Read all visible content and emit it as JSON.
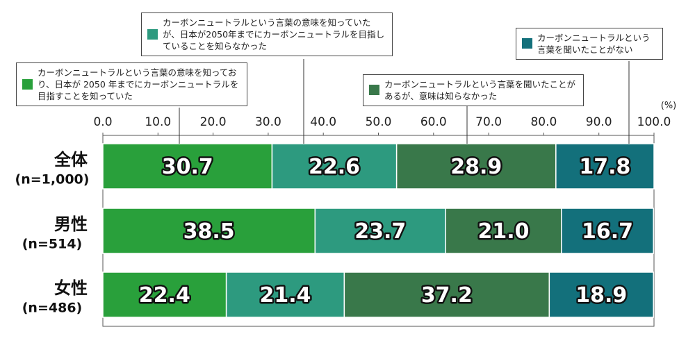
{
  "chart_data": {
    "type": "bar",
    "orientation": "horizontal",
    "stacked": true,
    "unit": "(%)",
    "categories": [
      "全体",
      "男性",
      "女性"
    ],
    "category_sublabels": [
      "(n=1,000)",
      "(n=514)",
      "(n=486)"
    ],
    "series": [
      {
        "name": "カーボンニュートラルという言葉の意味を知っており、日本が 2050 年までにカーボンニュートラルを目指すことを知っていた",
        "color": "#29a03b",
        "values": [
          30.7,
          38.5,
          22.4
        ],
        "value_labels": [
          "30.7",
          "38.5",
          "22.4"
        ]
      },
      {
        "name": "カーボンニュートラルという言葉の意味を知っていたが、日本が2050年までにカーボンニュートラルを目指していることを知らなかった",
        "color": "#2d9a7f",
        "values": [
          22.6,
          23.7,
          21.4
        ],
        "value_labels": [
          "22.6",
          "23.7",
          "21.4"
        ]
      },
      {
        "name": "カーボンニュートラルという言葉を聞いたことがあるが、意味は知らなかった",
        "color": "#39784a",
        "values": [
          28.9,
          21.0,
          37.2
        ],
        "value_labels": [
          "28.9",
          "21.0",
          "37.2"
        ]
      },
      {
        "name": "カーボンニュートラルという言葉を聞いたことがない",
        "color": "#13707b",
        "values": [
          17.8,
          16.7,
          18.9
        ],
        "value_labels": [
          "17.8",
          "16.7",
          "18.9"
        ]
      }
    ],
    "xlim": [
      0,
      100
    ],
    "xticks": [
      {
        "value": 0,
        "label": "0.0"
      },
      {
        "value": 10,
        "label": "10.0"
      },
      {
        "value": 20,
        "label": "20.0"
      },
      {
        "value": 30,
        "label": "30.0"
      },
      {
        "value": 40,
        "label": "40.0"
      },
      {
        "value": 50,
        "label": "50.0"
      },
      {
        "value": 60,
        "label": "60.0"
      },
      {
        "value": 70,
        "label": "70.0"
      },
      {
        "value": 80,
        "label": "80.0"
      },
      {
        "value": 90,
        "label": "90.0"
      },
      {
        "value": 100,
        "label": "100.0"
      }
    ]
  }
}
